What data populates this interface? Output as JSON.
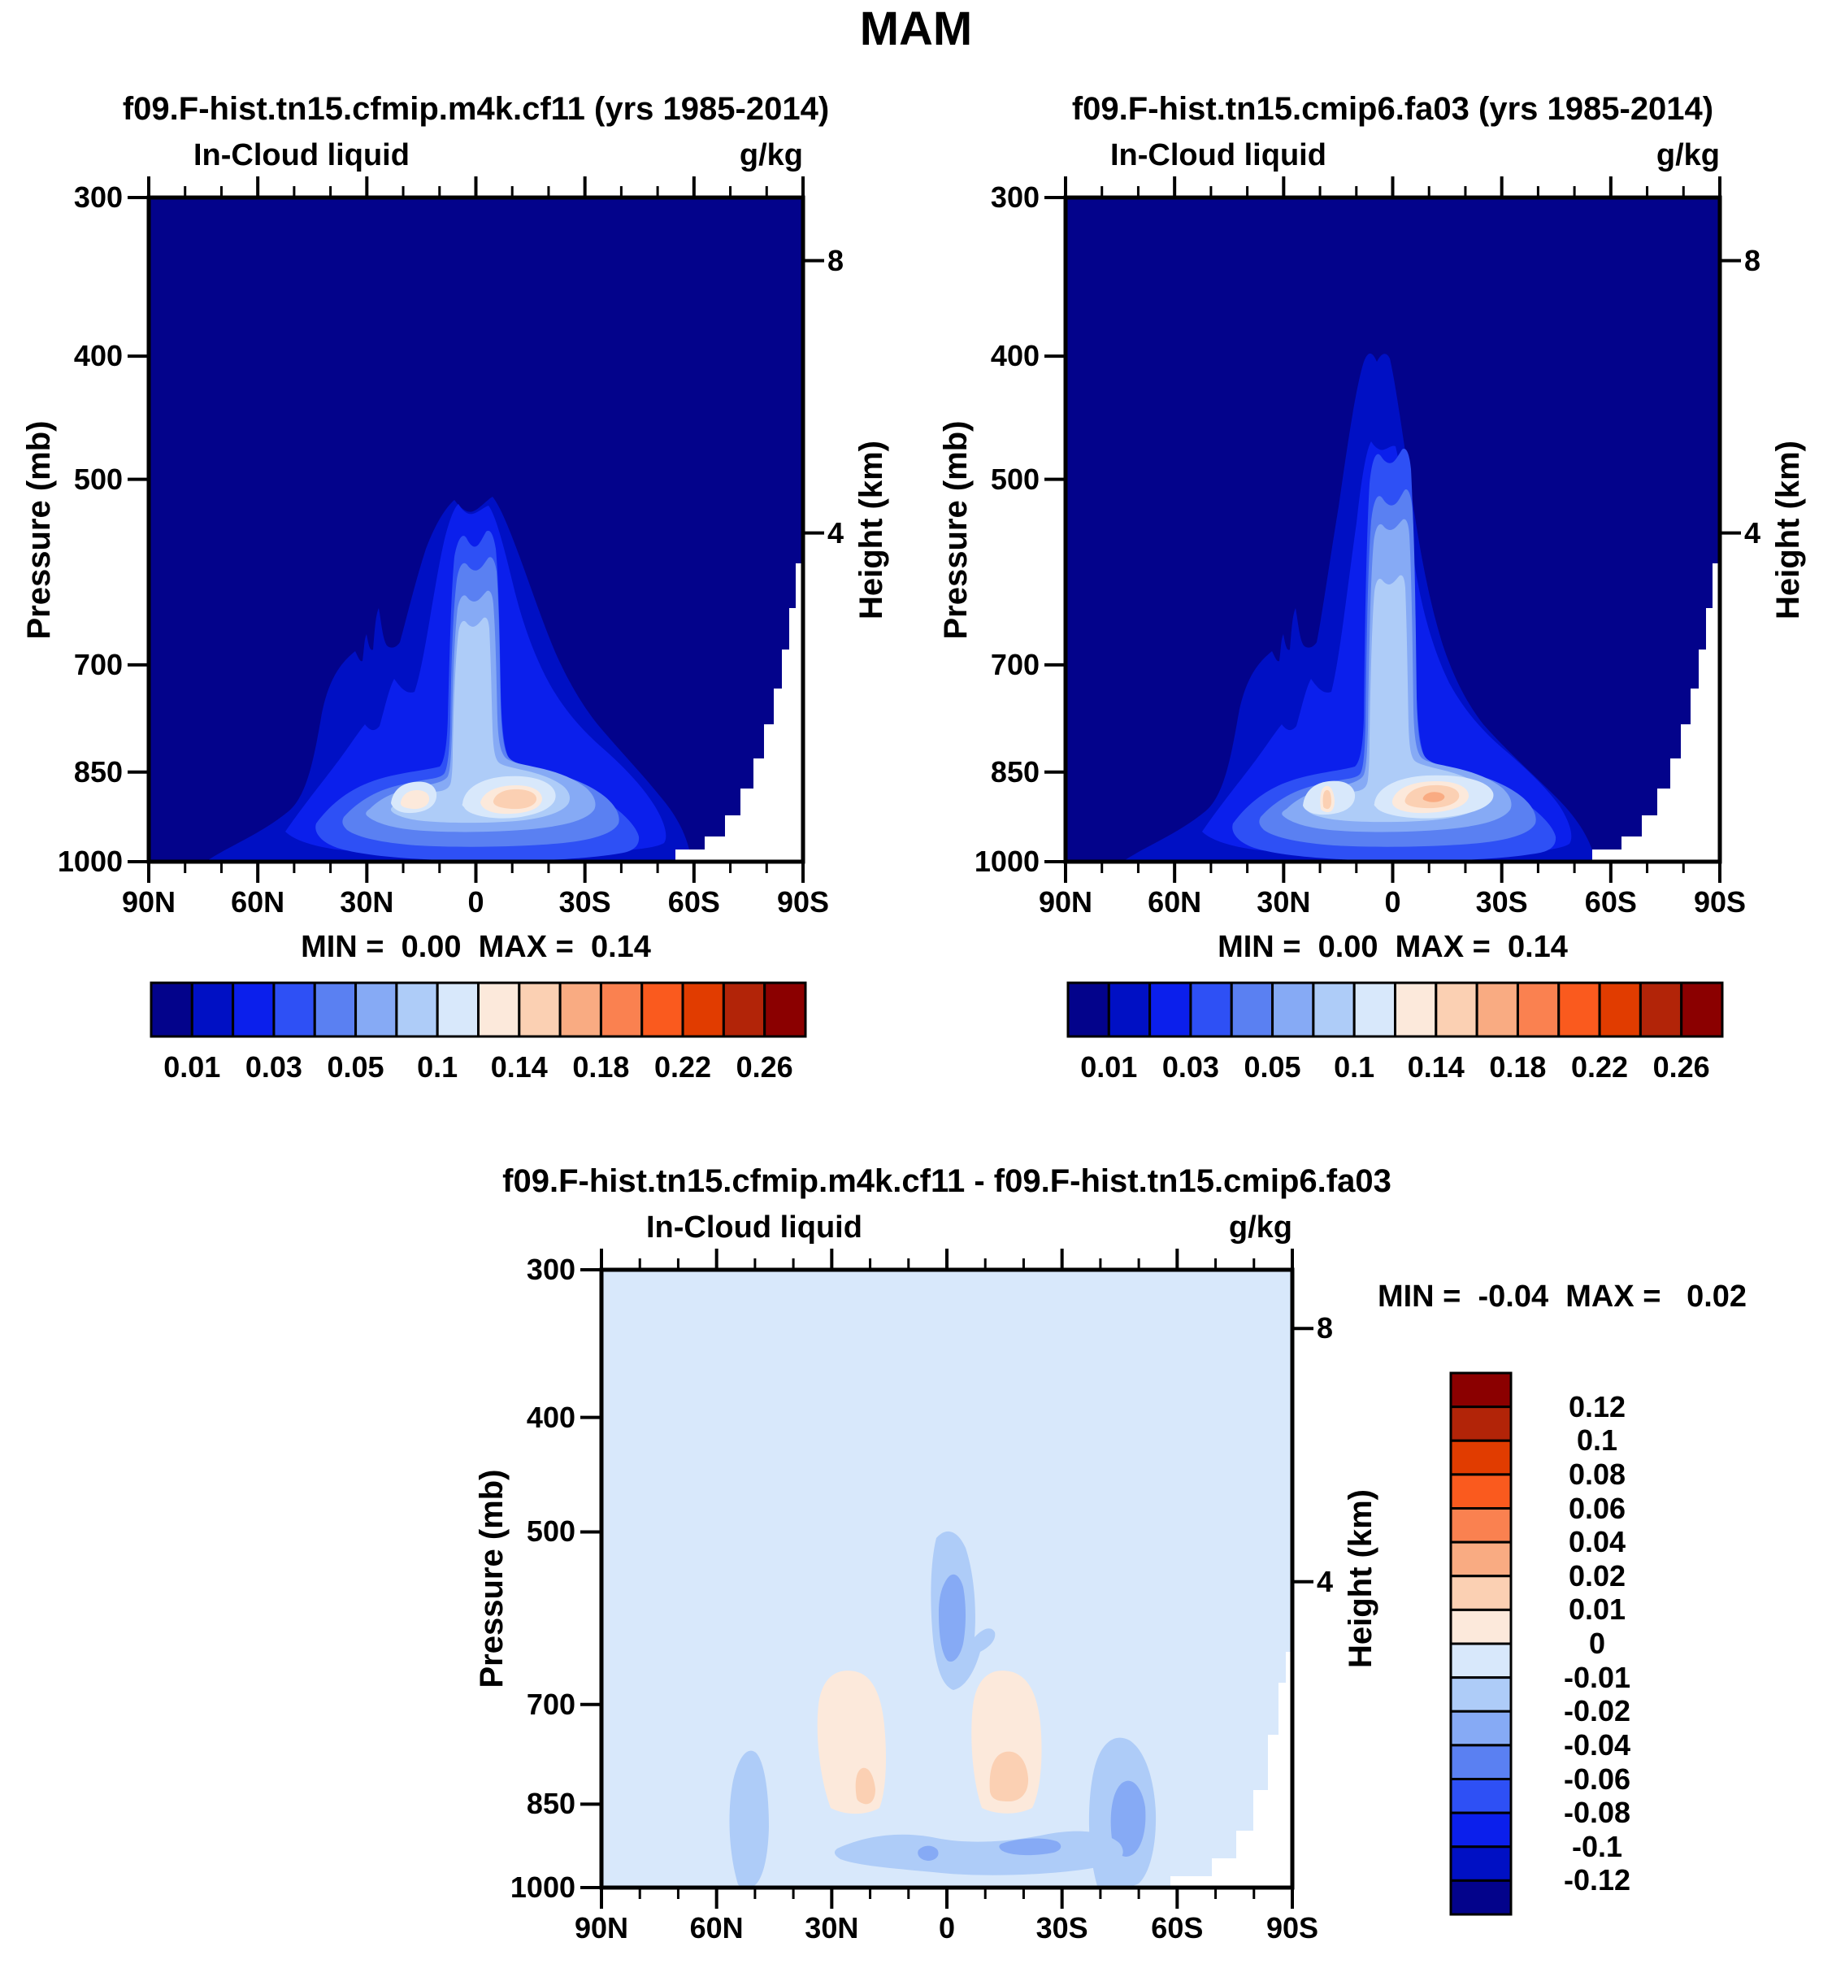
{
  "title": "MAM",
  "mask_color": "#FFFFFF",
  "palette": [
    "#03038B",
    "#0010C4",
    "#0B1FEC",
    "#2E50F5",
    "#5A80F2",
    "#86AAF5",
    "#AECCF8",
    "#D8E8FB",
    "#FCE9DB",
    "#FBD0B3",
    "#F9AB82",
    "#FA8150",
    "#FA5A1E",
    "#E13C00",
    "#B22408",
    "#8B0000"
  ],
  "panels": {
    "left": {
      "title": "f09.F-hist.tn15.cfmip.m4k.cf11 (yrs 1985-2014)",
      "field": "In-Cloud liquid",
      "units": "g/kg",
      "stats": "MIN =  0.00  MAX =  0.14"
    },
    "right": {
      "title": "f09.F-hist.tn15.cmip6.fa03 (yrs 1985-2014)",
      "field": "In-Cloud liquid",
      "units": "g/kg",
      "stats": "MIN =  0.00  MAX =  0.14"
    },
    "diff": {
      "title": "f09.F-hist.tn15.cfmip.m4k.cf11 - f09.F-hist.tn15.cmip6.fa03",
      "field": "In-Cloud liquid",
      "units": "g/kg",
      "stats": "MIN =  -0.04  MAX =   0.02"
    }
  },
  "axes": {
    "pressure_title": "Pressure (mb)",
    "height_title": "Height (km)",
    "pressure_ticks": [
      "300",
      "400",
      "500",
      "700",
      "850",
      "1000"
    ],
    "lat_ticks": [
      "90N",
      "60N",
      "30N",
      "0",
      "30S",
      "60S",
      "90S"
    ],
    "height_ticks": [
      "8",
      "4"
    ]
  },
  "colorbar_top": {
    "labels": [
      "0.01",
      "0.03",
      "0.05",
      "0.1",
      "0.14",
      "0.18",
      "0.22",
      "0.26"
    ]
  },
  "colorbar_diff": {
    "labels": [
      "0.12",
      "0.1",
      "0.08",
      "0.06",
      "0.04",
      "0.02",
      "0.01",
      "0",
      "-0.01",
      "-0.02",
      "-0.04",
      "-0.06",
      "-0.08",
      "-0.1",
      "-0.12"
    ]
  },
  "chart_data": [
    {
      "type": "contour",
      "panel": "top-left",
      "title": "f09.F-hist.tn15.cfmip.m4k.cf11 (yrs 1985-2014)",
      "variable": "In-Cloud liquid",
      "units": "g/kg",
      "x_axis": {
        "ticks": [
          "90N",
          "60N",
          "30N",
          "0",
          "30S",
          "60S",
          "90S"
        ],
        "minor_tick_deg": 10
      },
      "y_axis": {
        "title": "Pressure (mb)",
        "scale": "log",
        "range": [
          300,
          1000
        ],
        "ticks": [
          300,
          400,
          500,
          700,
          850,
          1000
        ]
      },
      "y2_axis": {
        "title": "Height (km)",
        "ticks": [
          8,
          4
        ]
      },
      "contour_levels": [
        0.01,
        0.02,
        0.03,
        0.04,
        0.05,
        0.07,
        0.1,
        0.12,
        0.14,
        0.16,
        0.18,
        0.2,
        0.22,
        0.24,
        0.26
      ],
      "min": 0.0,
      "max": 0.14,
      "features": [
        {
          "desc": "low-level cloud liquid band",
          "lat": "25N-30S",
          "pressure_mb": "820-960",
          "value": "0.05-0.12"
        },
        {
          "desc": "primary maximum (pale peach core)",
          "lat": "3S-18S",
          "pressure_mb": 880,
          "value": 0.14
        },
        {
          "desc": "secondary pale maximum",
          "lat": "23N-11N",
          "pressure_mb": 900,
          "value": "0.10-0.12"
        },
        {
          "desc": "equatorial tongue reaching upward",
          "lat": "7N-8S",
          "top_pressure_mb": 480,
          "value_at_top": 0.01
        },
        {
          "desc": "narrow spike on north flank",
          "lat": "23N",
          "top_pressure_mb": 650
        },
        {
          "desc": "white terrain mask",
          "lat": "55S-90S",
          "pressure_mb": "below surface"
        }
      ]
    },
    {
      "type": "contour",
      "panel": "top-right",
      "title": "f09.F-hist.tn15.cmip6.fa03 (yrs 1985-2014)",
      "variable": "In-Cloud liquid",
      "units": "g/kg",
      "x_axis": {
        "ticks": [
          "90N",
          "60N",
          "30N",
          "0",
          "30S",
          "60S",
          "90S"
        ],
        "minor_tick_deg": 10
      },
      "y_axis": {
        "title": "Pressure (mb)",
        "scale": "log",
        "range": [
          300,
          1000
        ],
        "ticks": [
          300,
          400,
          500,
          700,
          850,
          1000
        ]
      },
      "y2_axis": {
        "title": "Height (km)",
        "ticks": [
          8,
          4
        ]
      },
      "contour_levels": [
        0.01,
        0.02,
        0.03,
        0.04,
        0.05,
        0.07,
        0.1,
        0.12,
        0.14,
        0.16,
        0.18,
        0.2,
        0.22,
        0.24,
        0.26
      ],
      "min": 0.0,
      "max": 0.14,
      "features": [
        {
          "desc": "low-level cloud liquid band",
          "lat": "25N-32S",
          "pressure_mb": "820-960",
          "value": "0.05-0.12"
        },
        {
          "desc": "primary maximum with orange core",
          "lat": "0-17S",
          "pressure_mb": 880,
          "value": "0.14-0.16"
        },
        {
          "desc": "narrow secondary peach sliver",
          "lat": "17N",
          "pressure_mb": 920,
          "value": 0.14
        },
        {
          "desc": "equatorial tongue, taller than left panel",
          "lat": "7N-8S",
          "top_pressure_mb": 420,
          "value_at_top": 0.01
        },
        {
          "desc": "white terrain mask",
          "lat": "55S-90S",
          "pressure_mb": "below surface"
        }
      ]
    },
    {
      "type": "contour",
      "panel": "bottom-difference",
      "title": "f09.F-hist.tn15.cfmip.m4k.cf11 - f09.F-hist.tn15.cmip6.fa03",
      "variable": "In-Cloud liquid",
      "units": "g/kg",
      "x_axis": {
        "ticks": [
          "90N",
          "60N",
          "30N",
          "0",
          "30S",
          "60S",
          "90S"
        ],
        "minor_tick_deg": 10
      },
      "y_axis": {
        "title": "Pressure (mb)",
        "scale": "log",
        "range": [
          300,
          1000
        ],
        "ticks": [
          300,
          400,
          500,
          700,
          850,
          1000
        ]
      },
      "y2_axis": {
        "title": "Height (km)",
        "ticks": [
          8,
          4
        ]
      },
      "contour_levels": [
        -0.12,
        -0.1,
        -0.08,
        -0.06,
        -0.04,
        -0.02,
        -0.01,
        0,
        0.01,
        0.02,
        0.04,
        0.06,
        0.08,
        0.1,
        0.12
      ],
      "min": -0.04,
      "max": 0.02,
      "features": [
        {
          "desc": "background weak negative anomaly",
          "value": "-0.01 to 0",
          "extent": "entire section"
        },
        {
          "desc": "equatorial negative blob",
          "lat": "3N-5S",
          "pressure_mb": "500-680",
          "value": "-0.04 to -0.02"
        },
        {
          "desc": "positive column north",
          "lat": "35N-10N",
          "pressure_mb": "660-880",
          "value": "0 to 0.01",
          "core": {
            "lat": "17N",
            "pressure_mb": 860,
            "value": 0.02
          }
        },
        {
          "desc": "positive column south",
          "lat": "6S-27S",
          "pressure_mb": "660-880",
          "value": "0 to 0.01",
          "core": {
            "lat": "9S-17S",
            "pressure_mb": 855,
            "value": 0.02
          }
        },
        {
          "desc": "negative blob northern midlatitudes",
          "lat": "55N-43N",
          "pressure_mb": "760-1000",
          "value": "-0.02"
        },
        {
          "desc": "negative blob southern midlatitudes",
          "lat": "35S-56S",
          "pressure_mb": "720-1000",
          "value": "-0.04 to -0.02"
        },
        {
          "desc": "negative low-level band",
          "lat": "28N-45S",
          "pressure_mb": "890-960",
          "value": "-0.04 to -0.02"
        },
        {
          "desc": "white terrain mask",
          "lat": "58S-90S",
          "pressure_mb": "below surface"
        }
      ]
    }
  ]
}
